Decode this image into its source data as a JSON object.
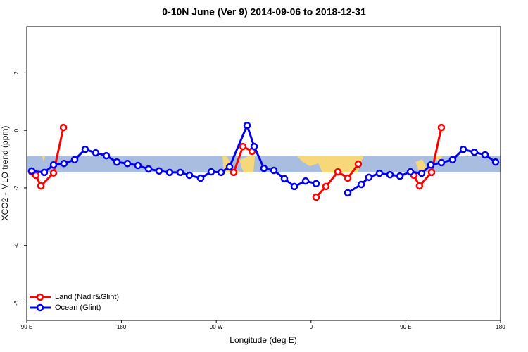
{
  "chart_data": {
    "type": "line",
    "title": "0-10N June (Ver 9)   2014-09-06 to 2018-12-31",
    "x_label": "Longitude (deg E)",
    "y_label": "XCO2 - MLO trend (ppm)",
    "xlim": [
      90,
      540
    ],
    "ylim": [
      -6.6,
      3.6
    ],
    "xticks": [
      {
        "value": 90,
        "label": "90 E"
      },
      {
        "value": 180,
        "label": "180"
      },
      {
        "value": 270,
        "label": "90 W"
      },
      {
        "value": 360,
        "label": "0"
      },
      {
        "value": 450,
        "label": "90 E"
      },
      {
        "value": 540,
        "label": "180"
      }
    ],
    "yticks": [
      -6,
      -4,
      -2,
      0,
      2
    ],
    "legend_position": "bottom-left",
    "series": [
      {
        "name": "Land (Nadir&Glint)",
        "color": "#ff0000",
        "x": [
          94.7,
          98.7,
          103.4,
          115.4,
          124.8,
          null,
          286.6,
          295.3,
          304,
          null,
          364.8,
          374.2,
          385.5,
          394.9,
          404.9,
          null,
          457.7,
          463,
          474.5,
          483.8
        ],
        "values": [
          -1.44,
          -1.56,
          -1.93,
          -1.48,
          0.1,
          null,
          -1.46,
          -0.56,
          -0.73,
          null,
          -2.32,
          -1.95,
          -1.44,
          -1.66,
          -1.17,
          null,
          -1.56,
          -1.93,
          -1.46,
          0.1
        ]
      },
      {
        "name": "Ocean (Glint)",
        "color": "#0000ee",
        "x": [
          94.7,
          106.7,
          115.4,
          125.4,
          135.5,
          145.5,
          155.5,
          165.6,
          175.6,
          185.6,
          195.6,
          205.7,
          215.7,
          225.7,
          235.8,
          244.5,
          255.2,
          265.2,
          274.5,
          282.6,
          299.3,
          306,
          315.3,
          324.7,
          334.7,
          344.1,
          354.8,
          364.8,
          null,
          394.9,
          407.6,
          415,
          425,
          435,
          444.4,
          454.4,
          465.1,
          473.8,
          483.8,
          494.5,
          504.6,
          515.2,
          525.3,
          535.3
        ],
        "values": [
          -1.41,
          -1.46,
          -1.2,
          -1.15,
          -1.02,
          -0.66,
          -0.78,
          -0.88,
          -1.1,
          -1.15,
          -1.22,
          -1.34,
          -1.41,
          -1.46,
          -1.46,
          -1.56,
          -1.66,
          -1.44,
          -1.46,
          -1.27,
          0.17,
          -0.56,
          -1.32,
          -1.39,
          -1.68,
          -1.95,
          -1.76,
          -1.85,
          null,
          -2.17,
          -1.88,
          -1.63,
          -1.49,
          -1.54,
          -1.59,
          -1.44,
          -1.49,
          -1.2,
          -1.12,
          -1.02,
          -0.66,
          -0.76,
          -0.85,
          -1.1
        ]
      }
    ]
  }
}
